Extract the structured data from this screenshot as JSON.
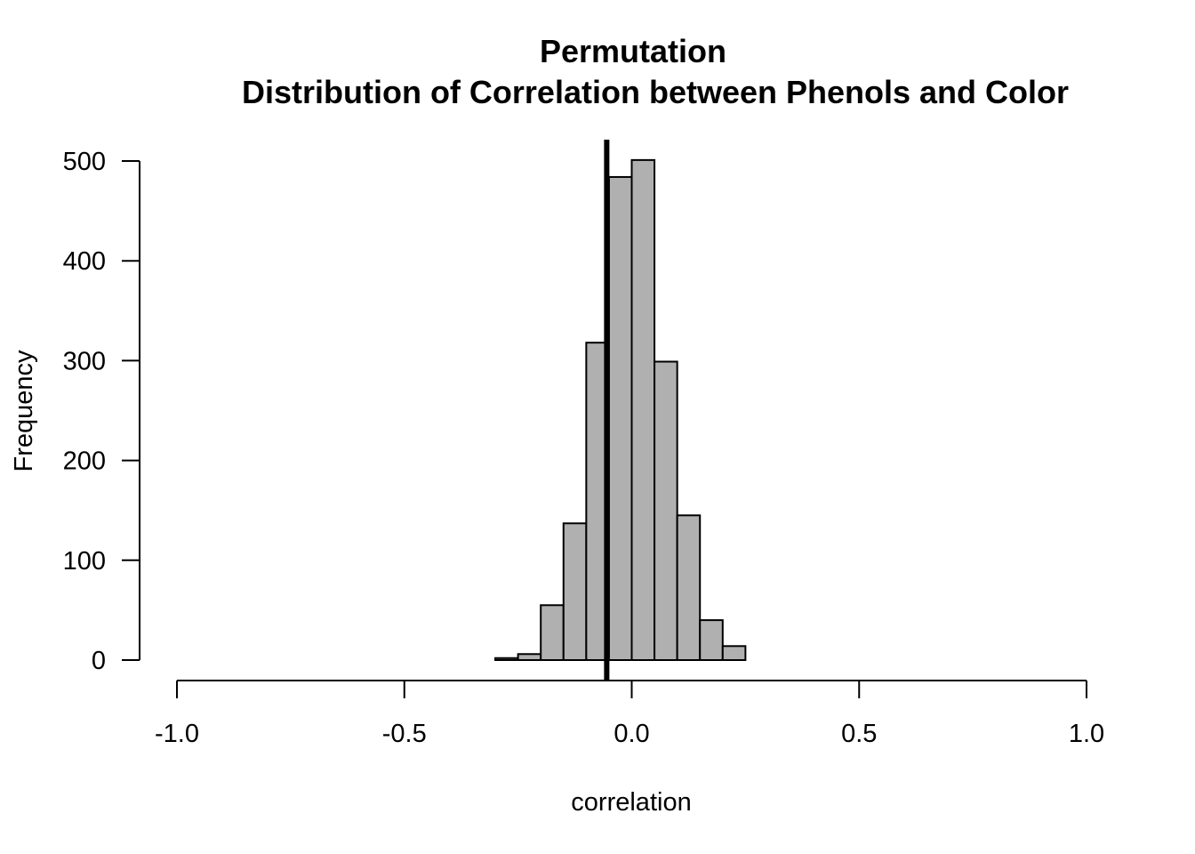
{
  "chart_data": {
    "type": "bar",
    "title_line1": "Permutation",
    "title_line2": "Distribution of Correlation between Phenols and Color",
    "xlabel": "correlation",
    "ylabel": "Frequency",
    "xlim": [
      -1.0,
      1.0
    ],
    "ylim": [
      0,
      500
    ],
    "x_ticks": [
      -1.0,
      -0.5,
      0.0,
      0.5,
      1.0
    ],
    "x_tick_labels": [
      "-1.0",
      "-0.5",
      "0.0",
      "0.5",
      "1.0"
    ],
    "y_ticks": [
      0,
      100,
      200,
      300,
      400,
      500
    ],
    "y_tick_labels": [
      "0",
      "100",
      "200",
      "300",
      "400",
      "500"
    ],
    "bin_width": 0.05,
    "bins": [
      {
        "start": -0.3,
        "end": -0.25,
        "count": 2
      },
      {
        "start": -0.25,
        "end": -0.2,
        "count": 6
      },
      {
        "start": -0.2,
        "end": -0.15,
        "count": 55
      },
      {
        "start": -0.15,
        "end": -0.1,
        "count": 137
      },
      {
        "start": -0.1,
        "end": -0.05,
        "count": 318
      },
      {
        "start": -0.05,
        "end": 0.0,
        "count": 484
      },
      {
        "start": 0.0,
        "end": 0.05,
        "count": 501
      },
      {
        "start": 0.05,
        "end": 0.1,
        "count": 299
      },
      {
        "start": 0.1,
        "end": 0.15,
        "count": 145
      },
      {
        "start": 0.15,
        "end": 0.2,
        "count": 40
      },
      {
        "start": 0.2,
        "end": 0.25,
        "count": 14
      }
    ],
    "observed_line_x": -0.055,
    "bar_fill": "#b0b0b0",
    "bar_stroke": "#000000",
    "line_color": "#000000",
    "grid": false,
    "legend": "none"
  }
}
